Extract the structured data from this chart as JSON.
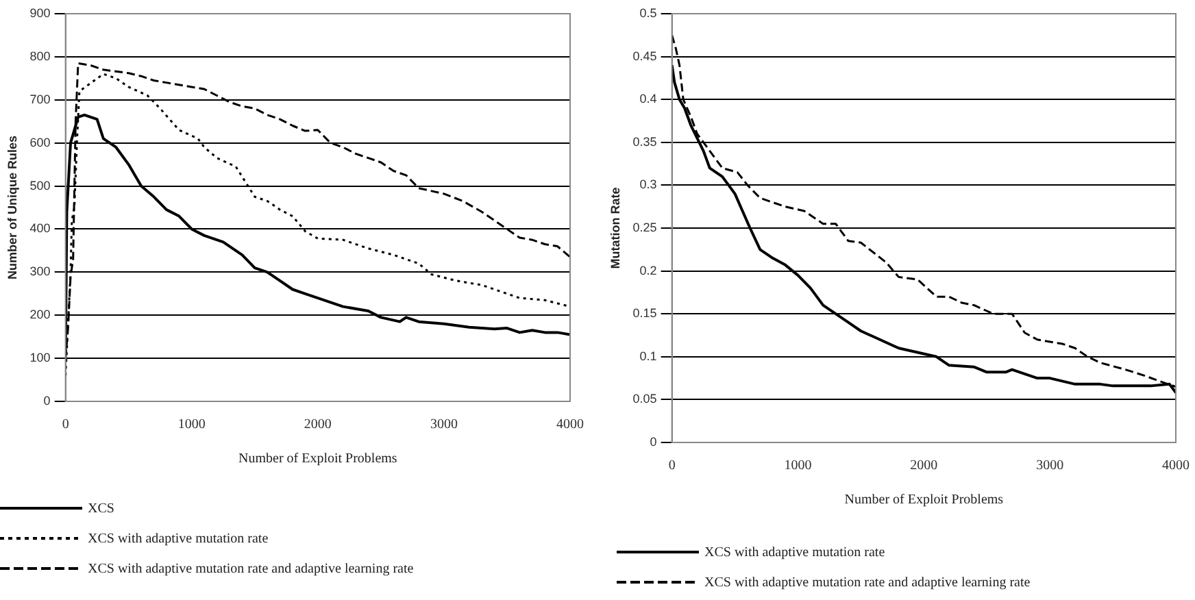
{
  "chart_data": [
    {
      "type": "line",
      "xlabel": "Number of Exploit Problems",
      "ylabel": "Number of Unique Rules",
      "xlim": [
        0,
        4000
      ],
      "xticks": [
        0,
        1000,
        2000,
        3000,
        4000
      ],
      "ylim": [
        0,
        900
      ],
      "yticks": [
        0,
        100,
        200,
        300,
        400,
        500,
        600,
        700,
        800,
        900
      ],
      "grid": "y",
      "legend": "bottom",
      "series": [
        {
          "name": "XCS",
          "color": "#000000",
          "line_style": "solid",
          "marker": "none",
          "x": [
            0,
            10,
            40,
            100,
            150,
            250,
            300,
            400,
            500,
            600,
            700,
            800,
            900,
            1000,
            1100,
            1250,
            1400,
            1500,
            1600,
            1700,
            1800,
            1900,
            2000,
            2200,
            2400,
            2500,
            2650,
            2700,
            2800,
            3000,
            3200,
            3400,
            3500,
            3600,
            3700,
            3800,
            3900,
            4000
          ],
          "values": [
            110,
            440,
            600,
            660,
            665,
            655,
            610,
            590,
            550,
            500,
            475,
            445,
            430,
            400,
            385,
            370,
            340,
            310,
            300,
            280,
            260,
            250,
            240,
            220,
            210,
            195,
            185,
            195,
            185,
            180,
            172,
            168,
            170,
            160,
            165,
            160,
            160,
            155
          ]
        },
        {
          "name": "XCS with adaptive mutation rate",
          "color": "#000000",
          "line_style": "dotted",
          "marker": "none",
          "x": [
            0,
            40,
            50,
            70,
            90,
            110,
            300,
            400,
            500,
            650,
            750,
            900,
            1050,
            1100,
            1200,
            1350,
            1500,
            1600,
            1700,
            1800,
            1900,
            2000,
            2200,
            2400,
            2600,
            2800,
            2900,
            3100,
            3300,
            3400,
            3600,
            3800,
            4000
          ],
          "values": [
            60,
            300,
            420,
            450,
            600,
            720,
            760,
            750,
            730,
            710,
            680,
            630,
            610,
            590,
            565,
            545,
            475,
            465,
            445,
            430,
            395,
            378,
            375,
            355,
            340,
            320,
            295,
            280,
            270,
            260,
            240,
            235,
            220
          ]
        },
        {
          "name": "XCS with adaptive mutation rate and adaptive learning rate",
          "color": "#000000",
          "line_style": "dashed",
          "marker": "none",
          "x": [
            0,
            20,
            40,
            60,
            80,
            100,
            200,
            300,
            500,
            600,
            700,
            800,
            1000,
            1100,
            1200,
            1300,
            1400,
            1500,
            1600,
            1700,
            1800,
            1900,
            2000,
            2100,
            2200,
            2300,
            2400,
            2500,
            2600,
            2700,
            2800,
            3000,
            3150,
            3300,
            3400,
            3500,
            3600,
            3700,
            3800,
            3900,
            4000
          ],
          "values": [
            100,
            170,
            290,
            330,
            650,
            785,
            780,
            770,
            762,
            755,
            745,
            740,
            730,
            725,
            710,
            695,
            685,
            680,
            665,
            655,
            640,
            628,
            630,
            600,
            590,
            575,
            565,
            555,
            535,
            525,
            495,
            482,
            465,
            440,
            420,
            400,
            380,
            375,
            365,
            360,
            335
          ]
        }
      ]
    },
    {
      "type": "line",
      "xlabel": "Number of Exploit Problems",
      "ylabel": "Mutation Rate",
      "xlim": [
        0,
        4000
      ],
      "xticks": [
        0,
        1000,
        2000,
        3000,
        4000
      ],
      "ylim": [
        0,
        0.5
      ],
      "yticks": [
        0,
        0.05,
        0.1,
        0.15,
        0.2,
        0.25,
        0.3,
        0.35,
        0.4,
        0.45,
        0.5
      ],
      "grid": "y",
      "legend": "bottom",
      "series": [
        {
          "name": "XCS with adaptive mutation rate",
          "color": "#000000",
          "line_style": "solid",
          "marker": "none",
          "x": [
            0,
            20,
            60,
            100,
            150,
            250,
            300,
            400,
            500,
            560,
            620,
            700,
            800,
            900,
            1000,
            1100,
            1200,
            1300,
            1400,
            1500,
            1650,
            1800,
            1950,
            2100,
            2200,
            2400,
            2500,
            2650,
            2700,
            2800,
            2900,
            3000,
            3200,
            3400,
            3500,
            3600,
            3800,
            3950,
            4000
          ],
          "values": [
            0.44,
            0.42,
            0.4,
            0.39,
            0.37,
            0.34,
            0.32,
            0.31,
            0.29,
            0.27,
            0.25,
            0.225,
            0.215,
            0.207,
            0.195,
            0.18,
            0.16,
            0.15,
            0.14,
            0.13,
            0.12,
            0.11,
            0.105,
            0.1,
            0.09,
            0.088,
            0.082,
            0.082,
            0.085,
            0.08,
            0.075,
            0.075,
            0.068,
            0.068,
            0.066,
            0.066,
            0.066,
            0.068,
            0.058
          ]
        },
        {
          "name": "XCS with adaptive mutation rate and adaptive learning rate",
          "color": "#000000",
          "line_style": "dashed",
          "marker": "none",
          "x": [
            0,
            30,
            60,
            90,
            150,
            200,
            300,
            400,
            520,
            600,
            700,
            800,
            900,
            1050,
            1200,
            1300,
            1400,
            1500,
            1700,
            1800,
            1950,
            2100,
            2200,
            2300,
            2400,
            2550,
            2700,
            2800,
            2900,
            3100,
            3200,
            3300,
            3400,
            3600,
            3750,
            3900,
            4000
          ],
          "values": [
            0.475,
            0.46,
            0.44,
            0.4,
            0.38,
            0.36,
            0.34,
            0.32,
            0.315,
            0.3,
            0.285,
            0.28,
            0.275,
            0.27,
            0.255,
            0.255,
            0.235,
            0.233,
            0.21,
            0.193,
            0.19,
            0.17,
            0.17,
            0.163,
            0.16,
            0.15,
            0.15,
            0.128,
            0.12,
            0.115,
            0.11,
            0.1,
            0.093,
            0.085,
            0.078,
            0.07,
            0.065
          ]
        }
      ]
    }
  ]
}
